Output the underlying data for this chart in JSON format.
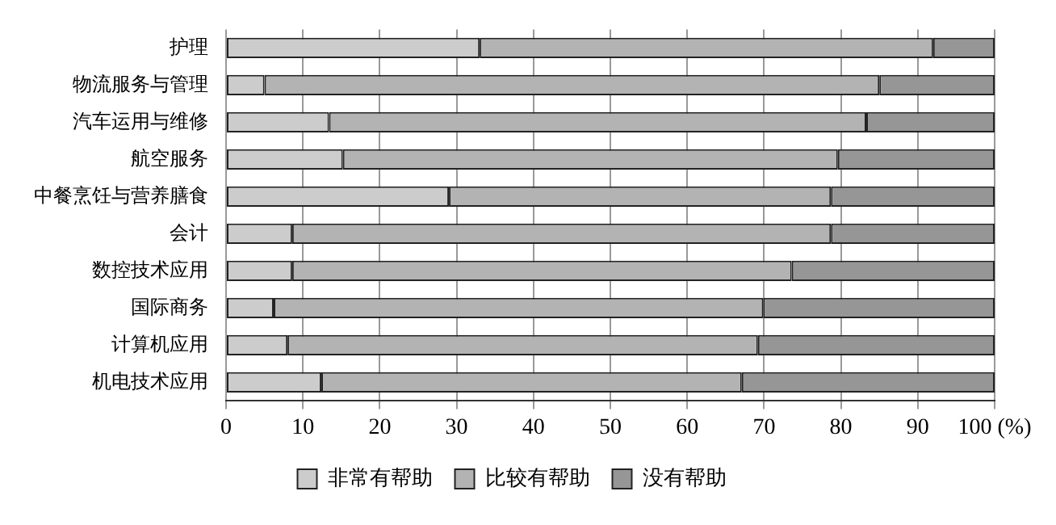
{
  "chart_data": {
    "type": "bar",
    "orientation": "horizontal",
    "stacked": true,
    "categories": [
      "护理",
      "物流服务与管理",
      "汽车运用与维修",
      "航空服务",
      "中餐烹饪与营养膳食",
      "会计",
      "数控技术应用",
      "国际商务",
      "计算机应用",
      "机电技术应用"
    ],
    "series": [
      {
        "name": "非常有帮助",
        "color": "#cccccc",
        "values": [
          33,
          5,
          13.4,
          15.2,
          29,
          8.6,
          8.6,
          6.2,
          8,
          12.4
        ]
      },
      {
        "name": "比较有帮助",
        "color": "#b3b3b3",
        "values": [
          59,
          80,
          69.9,
          64.4,
          49.7,
          70.1,
          65,
          63.7,
          61.2,
          54.7
        ]
      },
      {
        "name": "没有帮助",
        "color": "#969696",
        "values": [
          8,
          15,
          16.7,
          20.4,
          21.3,
          21.3,
          26.4,
          30.1,
          30.8,
          32.9
        ]
      }
    ],
    "xlim": [
      0,
      100
    ],
    "xticks": [
      0,
      10,
      20,
      30,
      40,
      50,
      60,
      70,
      80,
      90,
      {
        "value": 100,
        "label": "100 (%)"
      }
    ],
    "grid": "x",
    "legend": "bottom"
  }
}
